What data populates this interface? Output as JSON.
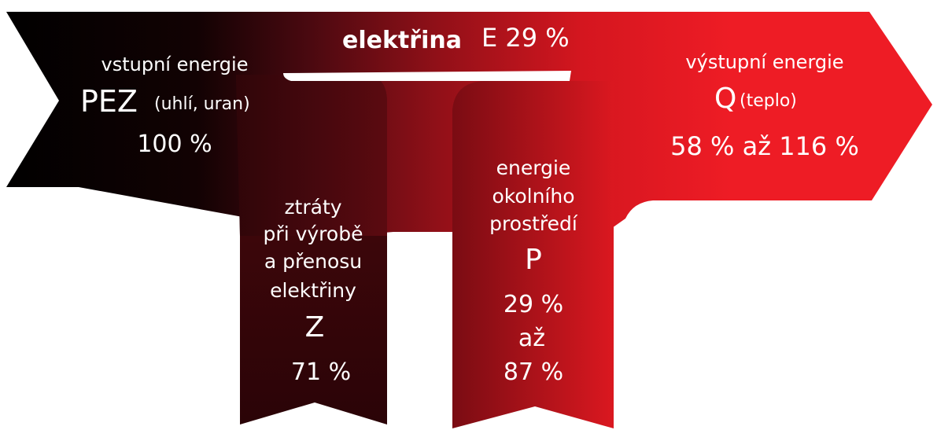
{
  "input": {
    "heading": "vstupní energie",
    "symbol": "PEZ",
    "note": "(uhlí, uran)",
    "value": "100 %"
  },
  "electricity": {
    "label": "elektřina",
    "value": "E 29 %"
  },
  "output": {
    "heading": "výstupní energie",
    "symbol": "Q",
    "note": "(teplo)",
    "value": "58 % až 116 %"
  },
  "losses": {
    "lines": [
      "ztráty",
      "při výrobě",
      "a přenosu",
      "elektřiny"
    ],
    "symbol": "Z",
    "value": "71 %"
  },
  "ambient": {
    "lines": [
      "energie",
      "okolního",
      "prostředí"
    ],
    "symbol": "P",
    "value_from": "29 %",
    "value_connector": "až",
    "value_to": "87 %"
  },
  "colors": {
    "dark": "#000000",
    "mid": "#6e0a12",
    "red": "#ee1c25",
    "text": "#ffffff"
  }
}
